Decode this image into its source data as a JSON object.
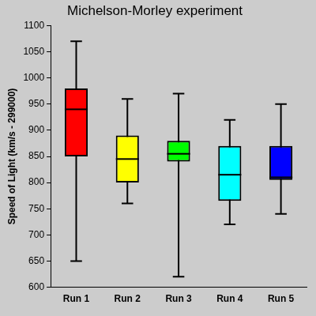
{
  "chart_data": {
    "type": "box",
    "title": "Michelson-Morley experiment",
    "y_label": "Speed of Light (km/s - 299000)",
    "categories": [
      "Run 1",
      "Run 2",
      "Run 3",
      "Run 4",
      "Run 5"
    ],
    "values": [
      {
        "min": 650,
        "q1": 850,
        "median": 940,
        "q3": 980,
        "max": 1070
      },
      {
        "min": 760,
        "q1": 800,
        "median": 845,
        "q3": 890,
        "max": 960
      },
      {
        "min": 620,
        "q1": 840,
        "median": 855,
        "q3": 880,
        "max": 970
      },
      {
        "min": 720,
        "q1": 765,
        "median": 815,
        "q3": 870,
        "max": 920
      },
      {
        "min": 740,
        "q1": 805,
        "median": 810,
        "q3": 870,
        "max": 950
      }
    ],
    "colors": [
      "#ff0000",
      "#ffff00",
      "#00ff00",
      "#00ffff",
      "#0000ff"
    ],
    "ylim": [
      600,
      1100
    ],
    "yticks": [
      600,
      650,
      700,
      750,
      800,
      850,
      900,
      950,
      1000,
      1050,
      1100
    ],
    "grid": false
  }
}
